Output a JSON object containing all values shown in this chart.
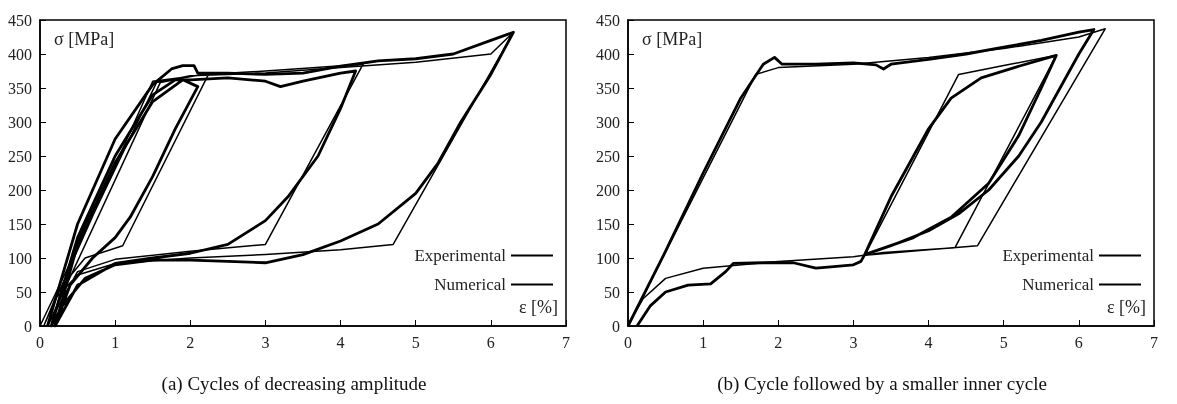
{
  "chart_data": [
    {
      "type": "line",
      "title": "(a) Cycles of decreasing amplitude",
      "ylabel": "σ [MPa]",
      "xlabel": "ε [%]",
      "xlim": [
        0,
        7
      ],
      "xticks": [
        0,
        1,
        2,
        3,
        4,
        5,
        6,
        7
      ],
      "ylim": [
        0,
        450
      ],
      "yticks": [
        0,
        50,
        100,
        150,
        200,
        250,
        300,
        350,
        400,
        450
      ],
      "grid": false,
      "legend": "bottom right",
      "marker": "none",
      "series": [
        {
          "name": "Experimental",
          "color": "#000000",
          "x": [
            0.1,
            0.5,
            1.0,
            1.5,
            1.75,
            1.9,
            2.05,
            2.1,
            2.15,
            2.5,
            3.0,
            3.5,
            4.0,
            4.5,
            5.0,
            5.5,
            6.0,
            6.3,
            6.0,
            5.6,
            5.3,
            5.0,
            4.5,
            4.0,
            3.5,
            3.0,
            2.5,
            2.0,
            1.5,
            1.0,
            0.6,
            0.3,
            0.15,
            0.5,
            1.0,
            1.5,
            1.8,
            2.0,
            2.5,
            3.0,
            3.2,
            3.5,
            4.0,
            4.2,
            4.0,
            3.7,
            3.3,
            3.0,
            2.5,
            2.0,
            1.5,
            1.0,
            0.5,
            0.2,
            0.5,
            1.0,
            1.5,
            1.9,
            2.1,
            1.8,
            1.5,
            1.2,
            1.0,
            0.7,
            0.4,
            0.2
          ],
          "values": [
            0,
            150,
            275,
            355,
            378,
            383,
            383,
            372,
            372,
            372,
            370,
            372,
            382,
            390,
            393,
            400,
            420,
            432,
            370,
            300,
            240,
            195,
            150,
            125,
            105,
            93,
            95,
            97,
            97,
            90,
            70,
            30,
            0,
            130,
            250,
            340,
            362,
            362,
            365,
            360,
            352,
            360,
            372,
            375,
            320,
            250,
            190,
            155,
            120,
            107,
            100,
            92,
            60,
            0,
            120,
            240,
            330,
            362,
            352,
            290,
            220,
            160,
            130,
            100,
            60,
            0
          ]
        },
        {
          "name": "Numerical",
          "color": "#000000",
          "x": [
            0,
            1.55,
            2.0,
            3.0,
            4.0,
            5.0,
            6.0,
            6.3,
            4.7,
            4.0,
            3.0,
            2.0,
            1.0,
            0.5,
            0.2,
            0.05,
            1.5,
            2.2,
            3.0,
            4.3,
            3.0,
            2.0,
            1.0,
            0.5,
            0.1,
            1.6,
            2.25,
            1.1,
            0.6,
            0.3,
            0.15
          ],
          "values": [
            0,
            358,
            368,
            372,
            380,
            388,
            400,
            432,
            120,
            112,
            105,
            100,
            92,
            75,
            40,
            0,
            360,
            370,
            375,
            385,
            120,
            110,
            98,
            80,
            0,
            358,
            372,
            118,
            100,
            60,
            0
          ]
        }
      ]
    },
    {
      "type": "line",
      "title": "(b) Cycle followed by a smaller inner cycle",
      "ylabel": "σ [MPa]",
      "xlabel": "ε [%]",
      "xlim": [
        0,
        7
      ],
      "xticks": [
        0,
        1,
        2,
        3,
        4,
        5,
        6,
        7
      ],
      "ylim": [
        0,
        450
      ],
      "yticks": [
        0,
        50,
        100,
        150,
        200,
        250,
        300,
        350,
        400,
        450
      ],
      "grid": false,
      "legend": "bottom right",
      "marker": "none",
      "series": [
        {
          "name": "Experimental",
          "color": "#000000",
          "x": [
            0,
            0.5,
            1.0,
            1.5,
            1.8,
            1.95,
            2.05,
            2.5,
            3.0,
            3.3,
            3.4,
            3.5,
            4.0,
            4.5,
            5.0,
            5.5,
            6.0,
            6.2,
            6.0,
            5.7,
            5.5,
            5.2,
            4.8,
            4.4,
            4.0,
            3.5,
            3.15,
            3.5,
            4.0,
            4.3,
            4.7,
            5.2,
            5.7,
            5.5,
            5.2,
            4.8,
            4.3,
            3.8,
            3.15,
            3.1,
            3.0,
            2.7,
            2.5,
            2.2,
            1.8,
            1.4,
            1.3,
            1.1,
            0.8,
            0.5,
            0.3,
            0.12
          ],
          "values": [
            0,
            110,
            225,
            335,
            385,
            395,
            385,
            385,
            387,
            384,
            378,
            385,
            392,
            400,
            410,
            420,
            432,
            436,
            400,
            340,
            300,
            250,
            200,
            165,
            140,
            118,
            105,
            190,
            290,
            335,
            365,
            382,
            398,
            350,
            280,
            210,
            160,
            130,
            105,
            95,
            90,
            87,
            85,
            93,
            93,
            92,
            80,
            62,
            60,
            50,
            30,
            0
          ]
        },
        {
          "name": "Numerical",
          "color": "#000000",
          "x": [
            0,
            1.7,
            2.0,
            3.0,
            4.0,
            5.0,
            6.0,
            6.35,
            4.65,
            4.0,
            3.15,
            4.4,
            5.0,
            5.7,
            4.35,
            3.4,
            3.0,
            2.0,
            1.0,
            0.5,
            0.2,
            0
          ],
          "values": [
            0,
            370,
            380,
            385,
            395,
            408,
            425,
            437,
            118,
            112,
            104,
            370,
            383,
            398,
            115,
            108,
            102,
            95,
            85,
            70,
            40,
            2
          ]
        }
      ]
    }
  ]
}
